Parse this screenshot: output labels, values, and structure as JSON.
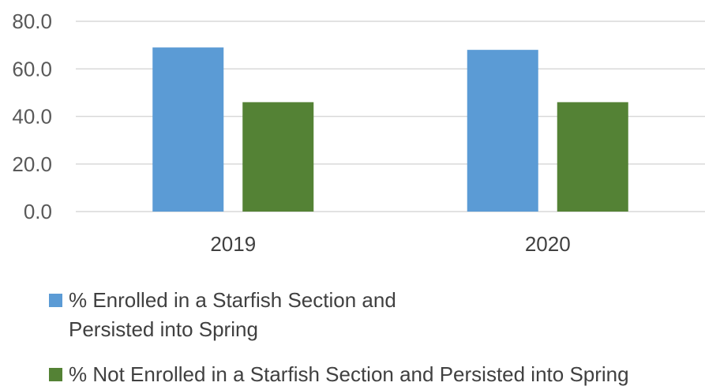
{
  "chart_data": {
    "type": "bar",
    "title": "",
    "xlabel": "",
    "ylabel": "",
    "categories": [
      "2019",
      "2020"
    ],
    "ylim": [
      0,
      80
    ],
    "yticks": [
      "0.0",
      "20.0",
      "40.0",
      "60.0",
      "80.0"
    ],
    "ytick_values": [
      0,
      20,
      40,
      60,
      80
    ],
    "grid": true,
    "legend_position": "bottom",
    "series": [
      {
        "name": "% Enrolled in a Starfish Section and Persisted into Spring",
        "values": [
          69,
          68
        ],
        "color": "#5b9bd5"
      },
      {
        "name": "% Not Enrolled in a Starfish Section and Persisted into Spring",
        "values": [
          46,
          46
        ],
        "color": "#548235"
      }
    ]
  }
}
